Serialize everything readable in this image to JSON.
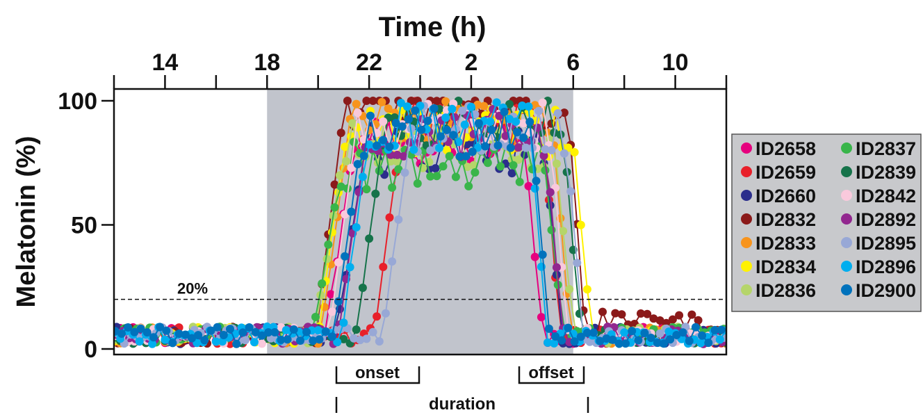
{
  "chart_data": {
    "type": "scatter",
    "title": "Time (h)",
    "xlabel": "Time (h)",
    "ylabel": "Melatonin (%)",
    "x_tick_labels": [
      "14",
      "18",
      "22",
      "2",
      "6",
      "10"
    ],
    "x_tick_positions_h": [
      14,
      18,
      22,
      26,
      30,
      34
    ],
    "xlim_h": [
      12,
      36
    ],
    "ylim": [
      0,
      100
    ],
    "y_ticks": [
      0,
      50,
      100
    ],
    "y_tick_labels": [
      "0",
      "50",
      "100"
    ],
    "threshold": {
      "value": 20,
      "label": "20%"
    },
    "dark_period_h": [
      18,
      30
    ],
    "grid": false,
    "legend_position": "right",
    "annotations": {
      "onset": "onset",
      "offset": "offset",
      "duration": "duration"
    },
    "series": [
      {
        "name": "ID2658",
        "color": "#e6007e",
        "onset": 21.4,
        "offset": 28.1,
        "plateau": 82
      },
      {
        "name": "ID2659",
        "color": "#e8202a",
        "onset": 23.3,
        "offset": 28.8,
        "plateau": 90
      },
      {
        "name": "ID2660",
        "color": "#2b2e8c",
        "onset": 21.8,
        "offset": 28.9,
        "plateau": 78
      },
      {
        "name": "ID2832",
        "color": "#8b1a1a",
        "onset": 21.0,
        "offset": 29.8,
        "plateau": 95
      },
      {
        "name": "ID2833",
        "color": "#f7941d",
        "onset": 21.2,
        "offset": 29.2,
        "plateau": 88
      },
      {
        "name": "ID2834",
        "color": "#fff200",
        "onset": 21.1,
        "offset": 30.0,
        "plateau": 85
      },
      {
        "name": "ID2836",
        "color": "#b5d56a",
        "onset": 21.0,
        "offset": 29.3,
        "plateau": 80
      },
      {
        "name": "ID2837",
        "color": "#39b54a",
        "onset": 20.9,
        "offset": 28.9,
        "plateau": 72
      },
      {
        "name": "ID2839",
        "color": "#16734a",
        "onset": 22.6,
        "offset": 29.6,
        "plateau": 90
      },
      {
        "name": "ID2842",
        "color": "#f9c9dc",
        "onset": 21.5,
        "offset": 29.1,
        "plateau": 88
      },
      {
        "name": "ID2892",
        "color": "#92278f",
        "onset": 21.9,
        "offset": 28.9,
        "plateau": 85
      },
      {
        "name": "ID2895",
        "color": "#98a8d6",
        "onset": 23.6,
        "offset": 29.7,
        "plateau": 86
      },
      {
        "name": "ID2896",
        "color": "#00aeef",
        "onset": 22.0,
        "offset": 28.3,
        "plateau": 88
      },
      {
        "name": "ID2900",
        "color": "#0072bc",
        "onset": 21.7,
        "offset": 28.4,
        "plateau": 85
      }
    ]
  }
}
